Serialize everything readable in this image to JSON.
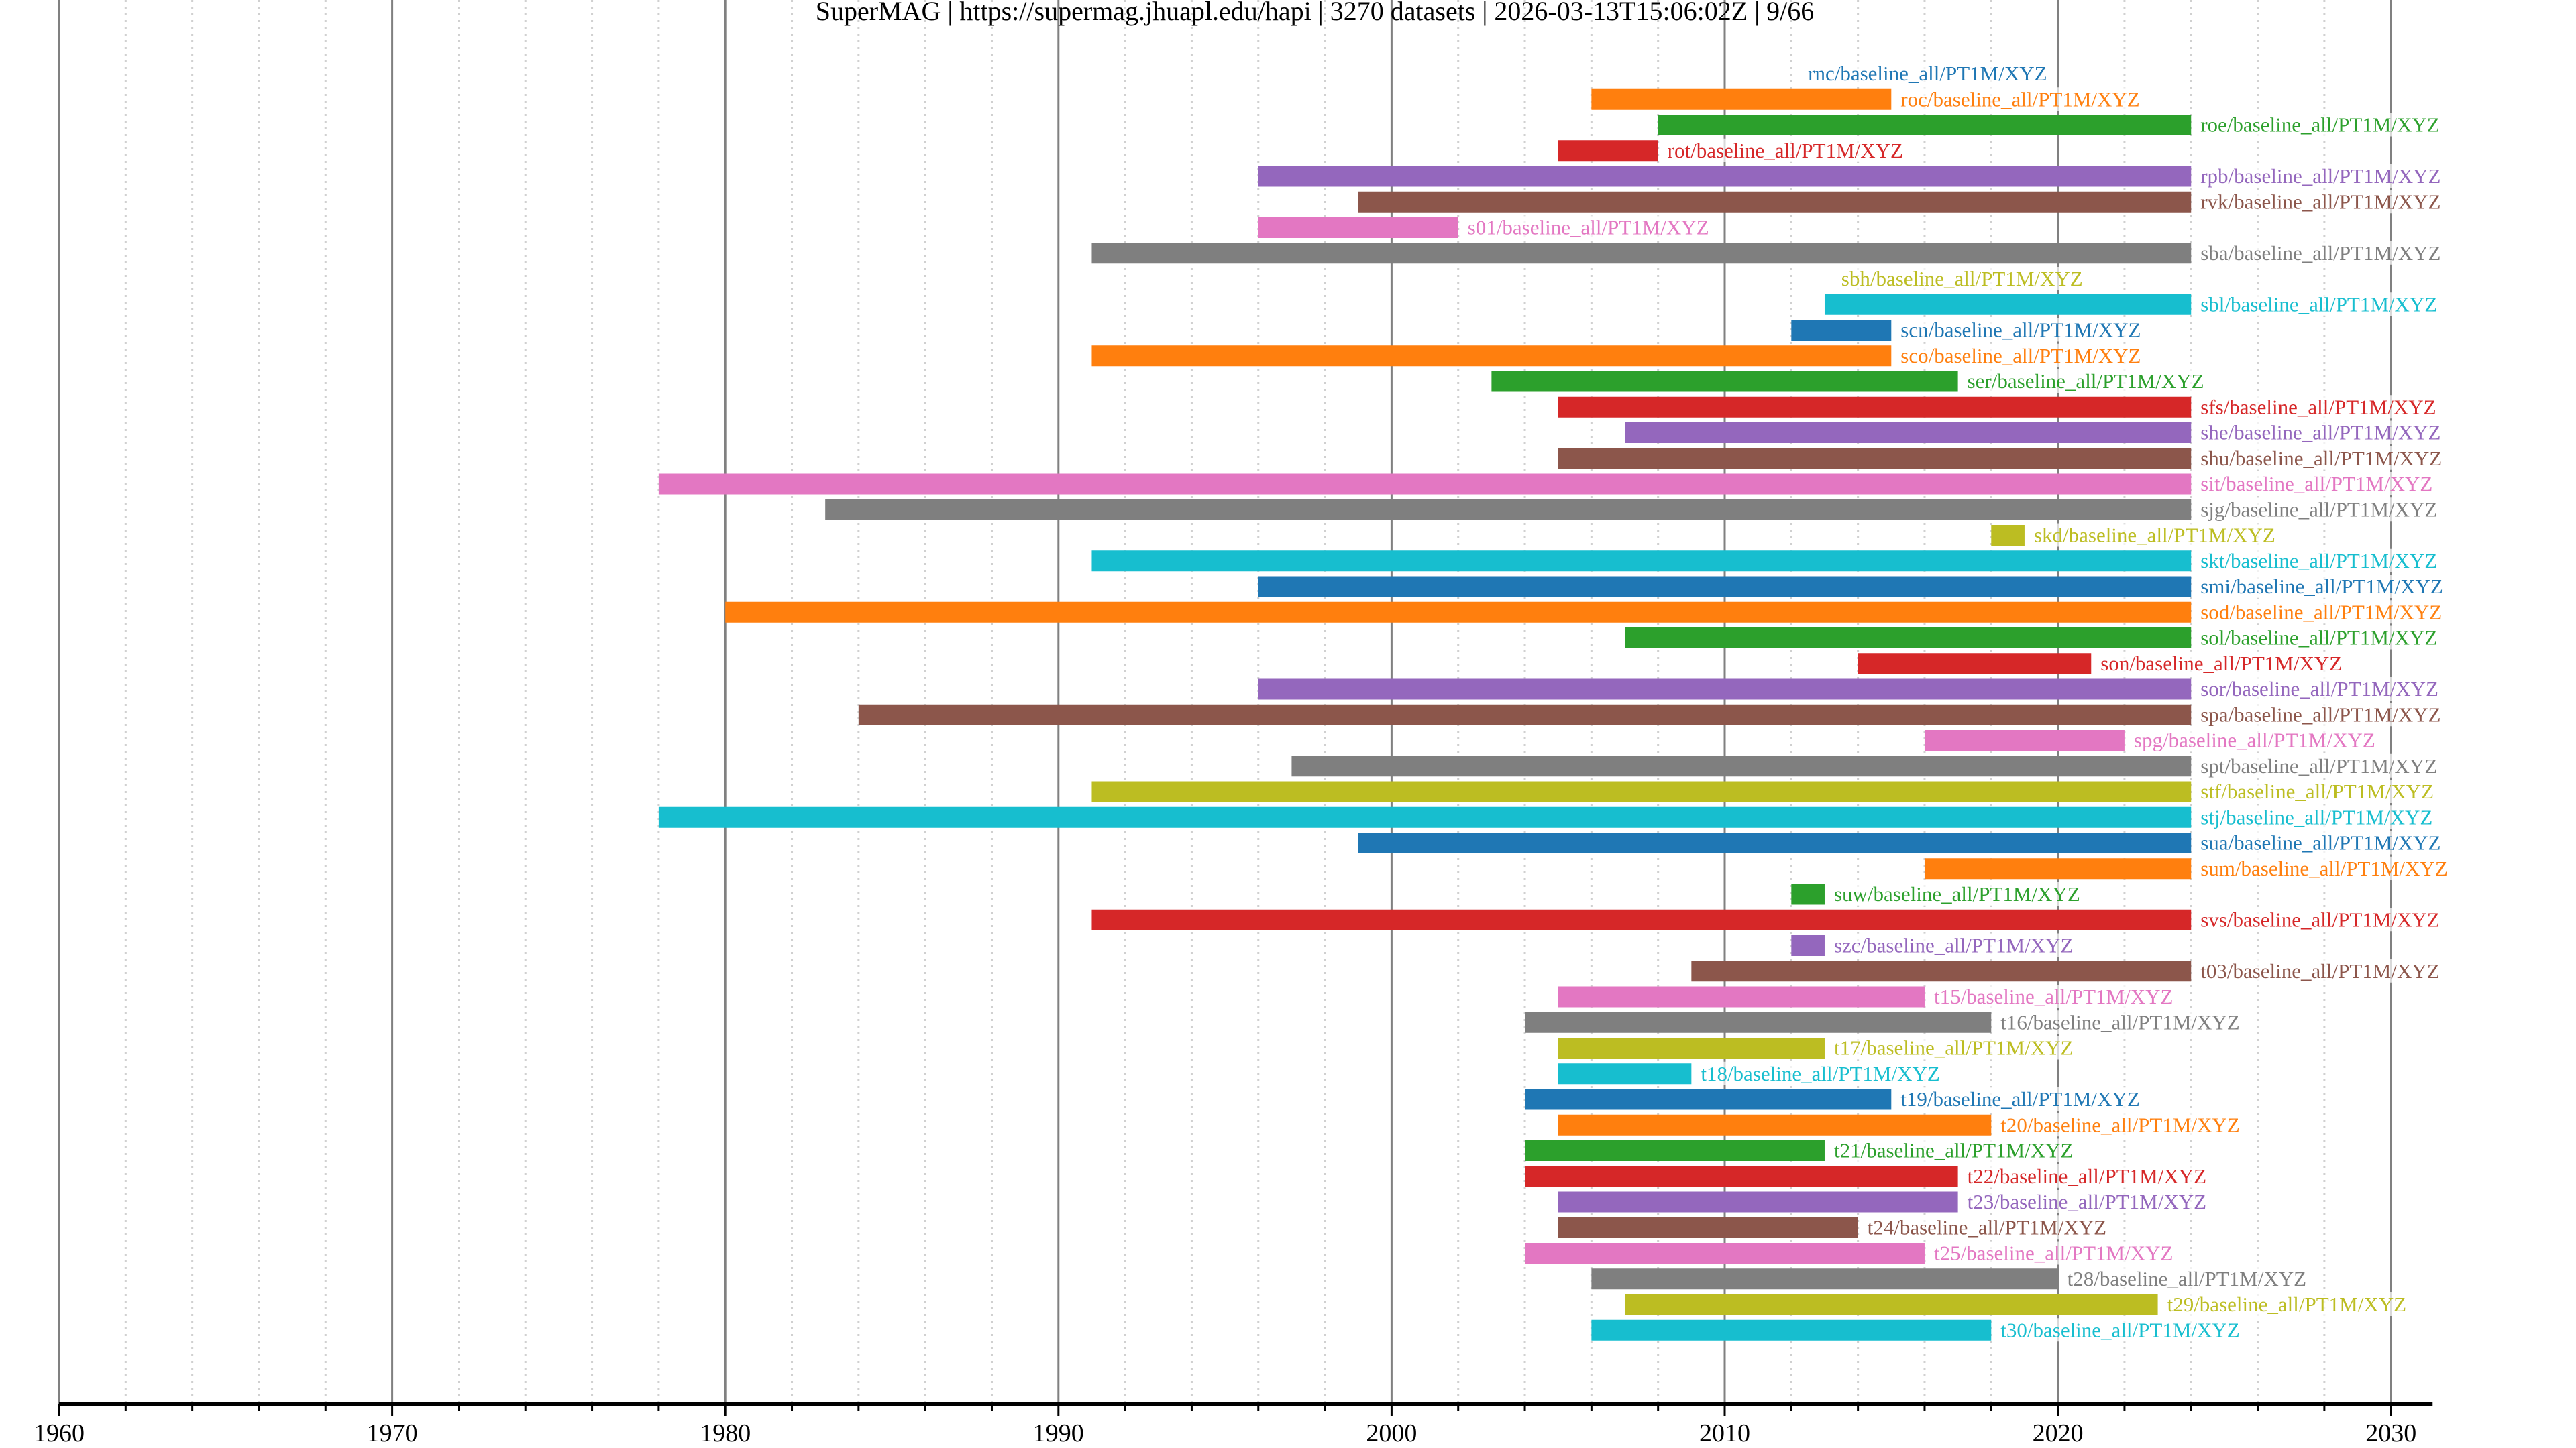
{
  "chart_data": {
    "type": "bar",
    "orientation": "horizontal-timeline",
    "title": "SuperMAG | https://supermag.jhuapl.edu/hapi | 3270 datasets | 2026-03-13T15:06:02Z | 9/66",
    "xlabel": "",
    "ylabel": "",
    "xlim": [
      1960,
      2031.25
    ],
    "x_ticks": [
      1960,
      1970,
      1980,
      1990,
      2000,
      2010,
      2020,
      2030
    ],
    "x_tick_labels": [
      "1960",
      "1970",
      "1980",
      "1990",
      "2000",
      "2010",
      "2020",
      "2030"
    ],
    "x_minor_step": 2,
    "grid": {
      "major": true,
      "minor": true
    },
    "label_suffix": "/baseline_all/PT1M/XYZ",
    "palette": [
      "#1f77b4",
      "#ff7f0e",
      "#2ca02c",
      "#d62728",
      "#9467bd",
      "#8c564b",
      "#e377c2",
      "#7f7f7f",
      "#bcbd22",
      "#17becf"
    ],
    "series": [
      {
        "name": "rnc/baseline_all/PT1M/XYZ",
        "start": null,
        "end": null,
        "label_at": 2012.5
      },
      {
        "name": "roc/baseline_all/PT1M/XYZ",
        "start": 2006,
        "end": 2015
      },
      {
        "name": "roe/baseline_all/PT1M/XYZ",
        "start": 2008,
        "end": 2024
      },
      {
        "name": "rot/baseline_all/PT1M/XYZ",
        "start": 2005,
        "end": 2008
      },
      {
        "name": "rpb/baseline_all/PT1M/XYZ",
        "start": 1996,
        "end": 2024
      },
      {
        "name": "rvk/baseline_all/PT1M/XYZ",
        "start": 1999,
        "end": 2024
      },
      {
        "name": "s01/baseline_all/PT1M/XYZ",
        "start": 1996,
        "end": 2002
      },
      {
        "name": "sba/baseline_all/PT1M/XYZ",
        "start": 1991,
        "end": 2024
      },
      {
        "name": "sbh/baseline_all/PT1M/XYZ",
        "start": null,
        "end": null,
        "label_at": 2013.5
      },
      {
        "name": "sbl/baseline_all/PT1M/XYZ",
        "start": 2013,
        "end": 2024
      },
      {
        "name": "scn/baseline_all/PT1M/XYZ",
        "start": 2012,
        "end": 2015
      },
      {
        "name": "sco/baseline_all/PT1M/XYZ",
        "start": 1991,
        "end": 2015
      },
      {
        "name": "ser/baseline_all/PT1M/XYZ",
        "start": 2003,
        "end": 2017
      },
      {
        "name": "sfs/baseline_all/PT1M/XYZ",
        "start": 2005,
        "end": 2024
      },
      {
        "name": "she/baseline_all/PT1M/XYZ",
        "start": 2007,
        "end": 2024
      },
      {
        "name": "shu/baseline_all/PT1M/XYZ",
        "start": 2005,
        "end": 2024
      },
      {
        "name": "sit/baseline_all/PT1M/XYZ",
        "start": 1978,
        "end": 2024
      },
      {
        "name": "sjg/baseline_all/PT1M/XYZ",
        "start": 1983,
        "end": 2024
      },
      {
        "name": "skd/baseline_all/PT1M/XYZ",
        "start": 2018,
        "end": 2019
      },
      {
        "name": "skt/baseline_all/PT1M/XYZ",
        "start": 1991,
        "end": 2024
      },
      {
        "name": "smi/baseline_all/PT1M/XYZ",
        "start": 1996,
        "end": 2024
      },
      {
        "name": "sod/baseline_all/PT1M/XYZ",
        "start": 1980,
        "end": 2024
      },
      {
        "name": "sol/baseline_all/PT1M/XYZ",
        "start": 2007,
        "end": 2024
      },
      {
        "name": "son/baseline_all/PT1M/XYZ",
        "start": 2014,
        "end": 2021
      },
      {
        "name": "sor/baseline_all/PT1M/XYZ",
        "start": 1996,
        "end": 2024
      },
      {
        "name": "spa/baseline_all/PT1M/XYZ",
        "start": 1984,
        "end": 2024
      },
      {
        "name": "spg/baseline_all/PT1M/XYZ",
        "start": 2016,
        "end": 2022
      },
      {
        "name": "spt/baseline_all/PT1M/XYZ",
        "start": 1997,
        "end": 2024
      },
      {
        "name": "stf/baseline_all/PT1M/XYZ",
        "start": 1991,
        "end": 2024
      },
      {
        "name": "stj/baseline_all/PT1M/XYZ",
        "start": 1978,
        "end": 2024
      },
      {
        "name": "sua/baseline_all/PT1M/XYZ",
        "start": 1999,
        "end": 2024
      },
      {
        "name": "sum/baseline_all/PT1M/XYZ",
        "start": 2016,
        "end": 2024
      },
      {
        "name": "suw/baseline_all/PT1M/XYZ",
        "start": 2012,
        "end": 2013
      },
      {
        "name": "svs/baseline_all/PT1M/XYZ",
        "start": 1991,
        "end": 2024
      },
      {
        "name": "szc/baseline_all/PT1M/XYZ",
        "start": 2012,
        "end": 2013
      },
      {
        "name": "t03/baseline_all/PT1M/XYZ",
        "start": 2009,
        "end": 2024
      },
      {
        "name": "t15/baseline_all/PT1M/XYZ",
        "start": 2005,
        "end": 2016
      },
      {
        "name": "t16/baseline_all/PT1M/XYZ",
        "start": 2004,
        "end": 2018
      },
      {
        "name": "t17/baseline_all/PT1M/XYZ",
        "start": 2005,
        "end": 2013
      },
      {
        "name": "t18/baseline_all/PT1M/XYZ",
        "start": 2005,
        "end": 2009
      },
      {
        "name": "t19/baseline_all/PT1M/XYZ",
        "start": 2004,
        "end": 2015
      },
      {
        "name": "t20/baseline_all/PT1M/XYZ",
        "start": 2005,
        "end": 2018
      },
      {
        "name": "t21/baseline_all/PT1M/XYZ",
        "start": 2004,
        "end": 2013
      },
      {
        "name": "t22/baseline_all/PT1M/XYZ",
        "start": 2004,
        "end": 2017
      },
      {
        "name": "t23/baseline_all/PT1M/XYZ",
        "start": 2005,
        "end": 2017
      },
      {
        "name": "t24/baseline_all/PT1M/XYZ",
        "start": 2005,
        "end": 2014
      },
      {
        "name": "t25/baseline_all/PT1M/XYZ",
        "start": 2004,
        "end": 2016
      },
      {
        "name": "t28/baseline_all/PT1M/XYZ",
        "start": 2006,
        "end": 2020
      },
      {
        "name": "t29/baseline_all/PT1M/XYZ",
        "start": 2007,
        "end": 2023
      },
      {
        "name": "t30/baseline_all/PT1M/XYZ",
        "start": 2006,
        "end": 2018
      }
    ]
  }
}
